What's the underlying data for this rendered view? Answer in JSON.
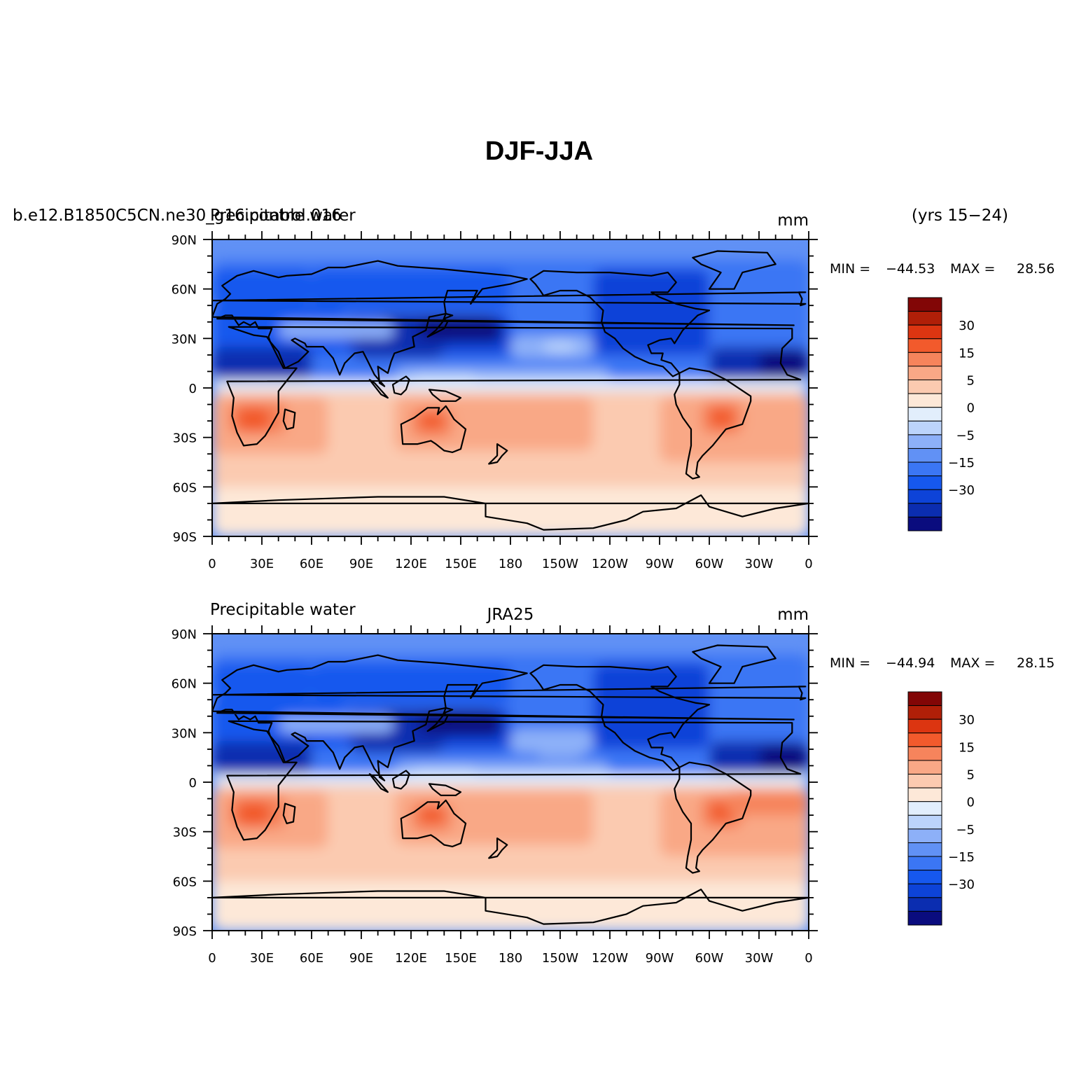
{
  "title": "DJF-JJA",
  "colorbar": {
    "colors": [
      "#0a0c7e",
      "#0b2db0",
      "#0d43d8",
      "#1658ee",
      "#3b76f4",
      "#6191f5",
      "#8db0f8",
      "#bcd4fb",
      "#e2eefc",
      "#fde8d8",
      "#fbcab0",
      "#f9a886",
      "#f6845c",
      "#f25a2c",
      "#dc3511",
      "#b01f08",
      "#820606"
    ],
    "labels": [
      "30",
      "15",
      "5",
      "0",
      "-5",
      "-15",
      "-30"
    ],
    "label_boundaries": [
      15,
      13,
      11,
      9,
      7,
      5,
      3
    ]
  },
  "axes": {
    "x_ticks": [
      "0",
      "30E",
      "60E",
      "90E",
      "120E",
      "150E",
      "180",
      "150W",
      "120W",
      "90W",
      "60W",
      "30W",
      "0"
    ],
    "y_ticks": [
      "90N",
      "60N",
      "30N",
      "0",
      "30S",
      "60S",
      "90S"
    ]
  },
  "panels": [
    {
      "left_title": "b.e12.B1850C5CN.ne30_g16.control.016",
      "left_title_overlap": "Precipitable water",
      "center_title": "",
      "units": "mm",
      "years": "(yrs 15−24)",
      "min_label": "MIN = ",
      "min_value": "−44.53",
      "max_label": "MAX = ",
      "max_value": "28.56",
      "variant": "model"
    },
    {
      "left_title": "Precipitable water",
      "left_title_overlap": "",
      "center_title": "JRA25",
      "units": "mm",
      "years": "",
      "min_label": "MIN = ",
      "min_value": "−44.94",
      "max_label": "MAX = ",
      "max_value": "28.15",
      "variant": "obs"
    }
  ]
}
